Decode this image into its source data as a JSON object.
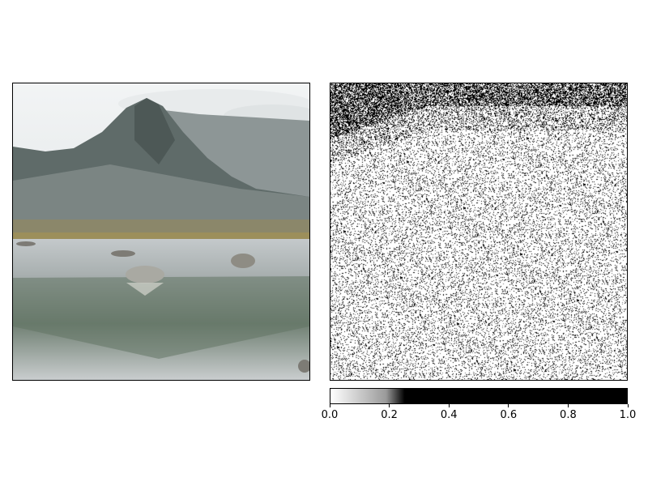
{
  "chart_data": [
    {
      "type": "image",
      "content": "photograph of a rocky mountain peak above a still lake with boulders and reflections",
      "colors": {
        "sky": "#eef1f2",
        "mountain": "#6d7878",
        "grass": "#8f8a62",
        "water": "#b9bfc2",
        "reflection": "#566a5c"
      },
      "axes_visible": false
    },
    {
      "type": "heatmap",
      "colormap": "gray_r",
      "content": "binary-like noise map, dense black speckles along the top edge, sparse speckles elsewhere",
      "colorbar": {
        "orientation": "horizontal",
        "range": [
          0.0,
          1.0
        ],
        "ticks": [
          "0.0",
          "0.2",
          "0.4",
          "0.6",
          "0.8",
          "1.0"
        ],
        "saturation_value": 0.25
      },
      "axes_visible": false
    }
  ]
}
